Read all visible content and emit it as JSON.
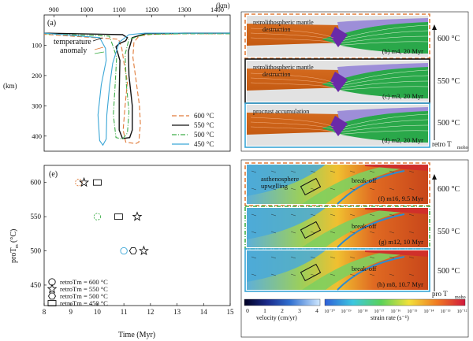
{
  "panel_a": {
    "label": "(a)",
    "x_unit": "(km)",
    "y_unit": "(km)",
    "annotation": [
      "temperature",
      "anomaly"
    ],
    "chart_data": {
      "type": "line",
      "x_ticks": [
        900,
        1000,
        1100,
        1200,
        1300,
        1400
      ],
      "y_ticks": [
        100,
        200,
        300,
        400
      ],
      "xlim": [
        870,
        1440
      ],
      "ylim": [
        0,
        450
      ],
      "series": [
        {
          "name": "600 °C",
          "color": "#e07b39",
          "dash": "6,3",
          "points": [
            [
              1440,
              62
            ],
            [
              1300,
              62
            ],
            [
              1200,
              64
            ],
            [
              1160,
              70
            ],
            [
              1145,
              90
            ],
            [
              1142,
              140
            ],
            [
              1152,
              220
            ],
            [
              1162,
              300
            ],
            [
              1165,
              360
            ],
            [
              1160,
              420
            ],
            [
              1150,
              425
            ],
            [
              1120,
              420
            ],
            [
              1112,
              380
            ],
            [
              1118,
              300
            ],
            [
              1125,
              220
            ],
            [
              1115,
              160
            ],
            [
              1108,
              110
            ],
            [
              1098,
              80
            ],
            [
              870,
              64
            ]
          ]
        },
        {
          "name": "550 °C",
          "color": "#111111",
          "dash": "",
          "points": [
            [
              1440,
              60
            ],
            [
              1300,
              60
            ],
            [
              1180,
              62
            ],
            [
              1140,
              75
            ],
            [
              1128,
              120
            ],
            [
              1130,
              200
            ],
            [
              1140,
              300
            ],
            [
              1140,
              380
            ],
            [
              1132,
              405
            ],
            [
              1110,
              408
            ],
            [
              1100,
              380
            ],
            [
              1100,
              260
            ],
            [
              1102,
              150
            ],
            [
              1090,
              105
            ],
            [
              1100,
              95
            ],
            [
              1120,
              85
            ],
            [
              1125,
              75
            ],
            [
              1110,
              65
            ],
            [
              870,
              60
            ]
          ]
        },
        {
          "name": "500 °C",
          "color": "#3fae49",
          "dash": "6,2,1,2",
          "points": [
            [
              1440,
              62
            ],
            [
              1300,
              62
            ],
            [
              1180,
              64
            ],
            [
              1130,
              80
            ],
            [
              1118,
              130
            ],
            [
              1122,
              230
            ],
            [
              1130,
              320
            ],
            [
              1125,
              390
            ],
            [
              1110,
              410
            ],
            [
              1090,
              405
            ],
            [
              1082,
              330
            ],
            [
              1088,
              220
            ],
            [
              1092,
              140
            ],
            [
              1080,
              100
            ],
            [
              1070,
              70
            ],
            [
              870,
              62
            ]
          ]
        },
        {
          "name": "450 °C",
          "color": "#3ba6d6",
          "dash": "",
          "points": [
            [
              1440,
              60
            ],
            [
              1300,
              60
            ],
            [
              1180,
              60
            ],
            [
              1130,
              65
            ],
            [
              1100,
              90
            ],
            [
              1080,
              160
            ],
            [
              1070,
              240
            ],
            [
              1062,
              330
            ],
            [
              1060,
              410
            ],
            [
              1050,
              430
            ],
            [
              1040,
              415
            ],
            [
              1035,
              330
            ],
            [
              1045,
              230
            ],
            [
              1060,
              150
            ],
            [
              1058,
              110
            ],
            [
              1040,
              75
            ],
            [
              870,
              60
            ]
          ]
        }
      ]
    }
  },
  "panel_retro": {
    "panels": [
      {
        "caption": "(b) m4, 20 Myr",
        "note": [
          "retrolithospheric mantle",
          "destruction"
        ],
        "border": "#e07b39"
      },
      {
        "caption": "(c) m3, 20 Myr",
        "note": [
          "retrolithospheric mantle",
          "destruction"
        ],
        "border": "#111111"
      },
      {
        "caption": "(d) m2, 20 Myr",
        "note": [
          "procrust accumulation"
        ],
        "border": "#3ba6d6"
      }
    ],
    "axis_ticks": [
      "600 °C",
      "550 °C",
      "500 °C"
    ],
    "axis_title": "retro T",
    "axis_sub": "moho"
  },
  "panel_e": {
    "label": "(e)",
    "xlabel": "Time (Myr)",
    "ylabel": "proT",
    "ylabel_sub": "m",
    "ylabel_unit": "(°C)",
    "legend": [
      "retroTm = 600 °C",
      "retroTm = 550 °C",
      "retroTm = 500 °C",
      "retroTm = 450 °C"
    ],
    "chart_data": {
      "type": "scatter",
      "x_ticks": [
        8,
        9,
        10,
        11,
        12,
        13,
        14,
        15
      ],
      "y_ticks": [
        450,
        500,
        550,
        600
      ],
      "xlim": [
        8,
        15
      ],
      "ylim": [
        420,
        625
      ],
      "points": [
        {
          "x": 9.3,
          "y": 600,
          "marker": "circle",
          "color": "#e07b39",
          "dash": true
        },
        {
          "x": 9.5,
          "y": 600,
          "marker": "star",
          "color": "#111111",
          "dash": false
        },
        {
          "x": 10.0,
          "y": 600,
          "marker": "square",
          "color": "#111111",
          "dash": false
        },
        {
          "x": 10.0,
          "y": 550,
          "marker": "circle",
          "color": "#3fae49",
          "dash": true
        },
        {
          "x": 10.8,
          "y": 550,
          "marker": "square",
          "color": "#111111",
          "dash": false
        },
        {
          "x": 11.5,
          "y": 550,
          "marker": "star",
          "color": "#111111",
          "dash": false
        },
        {
          "x": 11.0,
          "y": 500,
          "marker": "circle",
          "color": "#3ba6d6",
          "dash": false
        },
        {
          "x": 11.35,
          "y": 500,
          "marker": "hexagon",
          "color": "#111111",
          "dash": false
        },
        {
          "x": 11.75,
          "y": 500,
          "marker": "star",
          "color": "#111111",
          "dash": false
        }
      ]
    }
  },
  "panel_pro": {
    "panels": [
      {
        "caption": "(f) m16, 9.5 Myr",
        "note": [
          "asthenosphere",
          "upwelling"
        ],
        "breakoff": "break-off",
        "border": "#e07b39"
      },
      {
        "caption": "(g) m12, 10 Myr",
        "note": [],
        "breakoff": "break-off",
        "border": "#3fae49"
      },
      {
        "caption": "(h) m8, 10.7 Myr",
        "note": [],
        "breakoff": "break-off",
        "border": "#3ba6d6"
      }
    ],
    "axis_ticks": [
      "600 °C",
      "550 °C",
      "500 °C"
    ],
    "axis_title": "pro T",
    "axis_sub": "moho",
    "velocity": {
      "ticks": [
        "0",
        "1",
        "2",
        "3",
        "4"
      ],
      "label": "velocity (cm/yr)"
    },
    "strain": {
      "ticks": [
        "10⁻²⁰",
        "10⁻¹⁹",
        "10⁻¹⁸",
        "10⁻¹⁷",
        "10⁻¹⁶",
        "10⁻¹⁵",
        "10⁻¹⁴",
        "10⁻¹³",
        "10⁻¹²"
      ],
      "label": "strain rate (s⁻¹)"
    }
  }
}
